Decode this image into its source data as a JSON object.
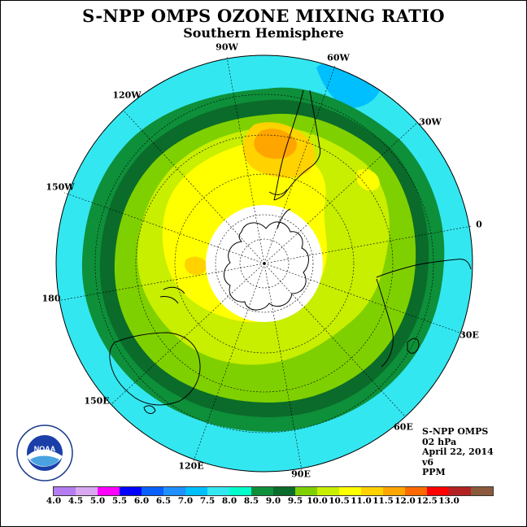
{
  "title": "S-NPP OMPS OZONE MIXING RATIO",
  "subtitle": "Southern Hemisphere",
  "longitude_labels": [
    "90W",
    "60W",
    "120W",
    "30W",
    "150W",
    "0",
    "180",
    "30E",
    "150E",
    "60E",
    "120E",
    "90E"
  ],
  "info": {
    "instrument": "S-NPP OMPS",
    "pressure_level": "02 hPa",
    "date": "April 22, 2014",
    "version": "v6",
    "units": "PPM"
  },
  "logo_text": "NOAA",
  "colorbar": {
    "tick_labels": [
      "4.0",
      "4.5",
      "5.0",
      "5.5",
      "6.0",
      "6.5",
      "7.0",
      "7.5",
      "8.0",
      "8.5",
      "9.0",
      "9.5",
      "10.0",
      "10.5",
      "11.0",
      "11.5",
      "12.0",
      "12.5",
      "13.0"
    ],
    "colors": [
      "#b57cf2",
      "#d9a8f0",
      "#ff00ff",
      "#0000ff",
      "#0a5fff",
      "#1e90ff",
      "#00bfff",
      "#33e7f0",
      "#00ffcc",
      "#0e8f3a",
      "#0a6b2a",
      "#7fd000",
      "#c8ee00",
      "#ffff00",
      "#ffd200",
      "#ffa500",
      "#ff6a00",
      "#ff0000",
      "#b22222",
      "#8b5a3c"
    ]
  },
  "map": {
    "projection": "south-polar-stereographic",
    "polar_no_data": true,
    "ozone_bands_ppm": [
      "7.5-8.0",
      "8.0-8.5",
      "8.5-9.0",
      "9.0-9.5",
      "9.5-10.0",
      "10.0-10.5",
      "10.5-11.0"
    ]
  }
}
